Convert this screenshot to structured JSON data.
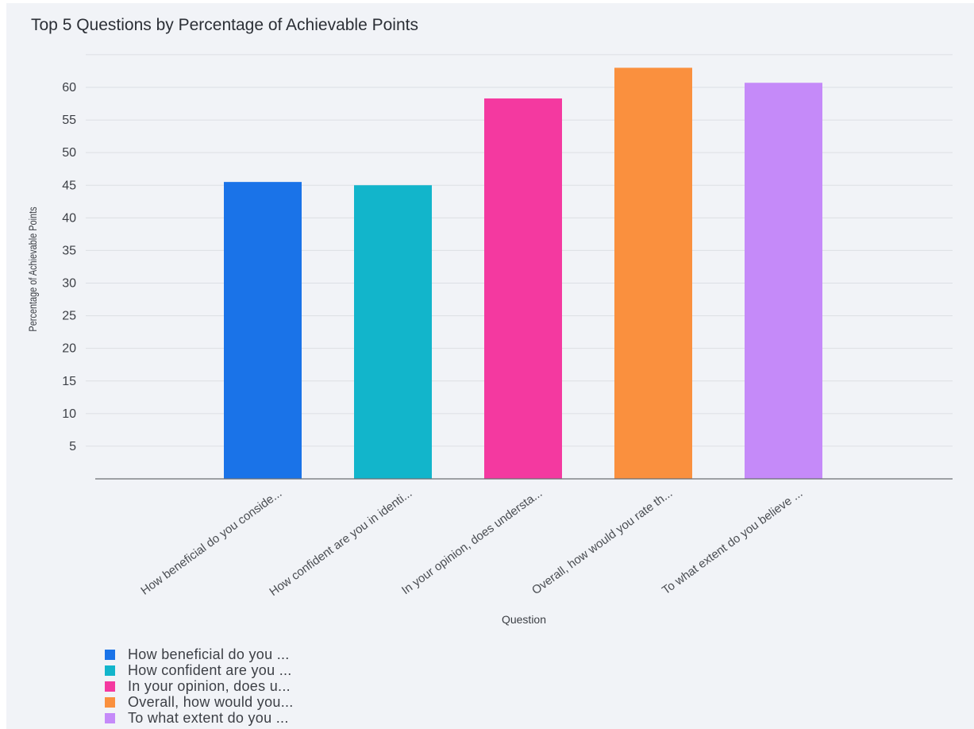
{
  "chart_data": {
    "type": "bar",
    "title": "Top 5 Questions by Percentage of Achievable Points",
    "xlabel": "Question",
    "ylabel": "Percentage of Achievable Points",
    "ylim": [
      0,
      65
    ],
    "yticks": [
      5,
      10,
      15,
      20,
      25,
      30,
      35,
      40,
      45,
      50,
      55,
      60
    ],
    "grid": true,
    "legend_position": "bottom-left",
    "categories": [
      "How beneficial do you conside...",
      "How confident are you in identi...",
      "In your opinion, does understa...",
      "Overall, how would you rate th...",
      "To what extent do you believe ..."
    ],
    "values": [
      45.5,
      45.0,
      58.3,
      63.0,
      60.7
    ],
    "colors": [
      "#1a73e8",
      "#12b5cb",
      "#f439a0",
      "#fa903e",
      "#c58af9"
    ],
    "legend": [
      "How beneficial do you ...",
      "How confident are you ...",
      "In your opinion, does u...",
      "Overall, how would you...",
      "To what extent do you ..."
    ]
  }
}
